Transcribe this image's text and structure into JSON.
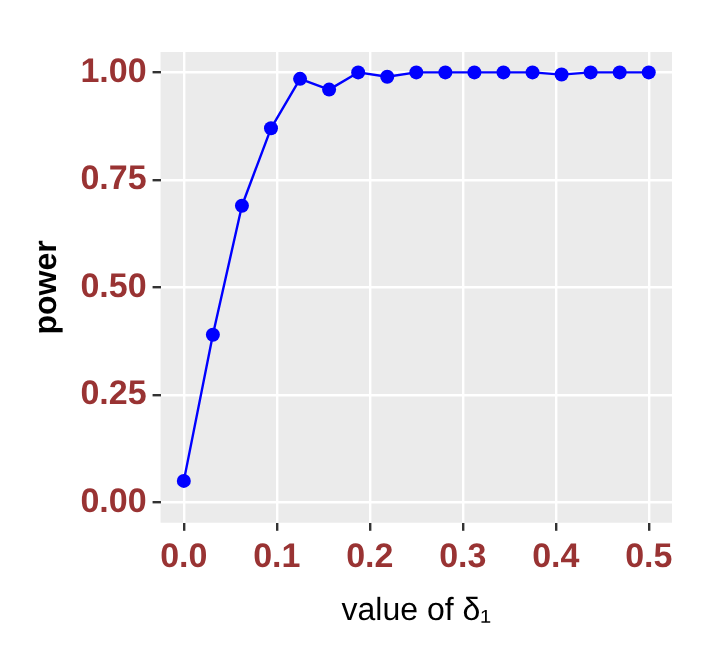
{
  "chart_data": {
    "type": "line",
    "xlabel": "value of δ₁",
    "ylabel": "power",
    "x": [
      0,
      0.03125,
      0.0625,
      0.09375,
      0.125,
      0.15625,
      0.1875,
      0.21875,
      0.25,
      0.28125,
      0.3125,
      0.34375,
      0.375,
      0.40625,
      0.4375,
      0.46875,
      0.5
    ],
    "series": [
      {
        "color": "#0000ff",
        "values": [
          0.05,
          0.39,
          0.69,
          0.87,
          0.985,
          0.96,
          1.0,
          0.99,
          1.0,
          1.0,
          1.0,
          1.0,
          1.0,
          0.995,
          1.0,
          1.0,
          1.0
        ]
      }
    ],
    "xlim": [
      -0.025,
      0.525
    ],
    "xticks": [
      {
        "value": 0,
        "label": "0.0"
      },
      {
        "value": 0.1,
        "label": "0.1"
      },
      {
        "value": 0.2,
        "label": "0.2"
      },
      {
        "value": 0.3,
        "label": "0.3"
      },
      {
        "value": 0.4,
        "label": "0.4"
      },
      {
        "value": 0.5,
        "label": "0.5"
      }
    ],
    "ylim": [
      -0.0475,
      1.0475
    ],
    "yticks": [
      {
        "value": 0,
        "label": "0.00"
      },
      {
        "value": 0.25,
        "label": "0.25"
      },
      {
        "value": 0.5,
        "label": "0.50"
      },
      {
        "value": 0.75,
        "label": "0.75"
      },
      {
        "value": 1,
        "label": "1.00"
      }
    ],
    "grid": true,
    "legend": false,
    "marker": "circle",
    "line_style": "solid"
  }
}
